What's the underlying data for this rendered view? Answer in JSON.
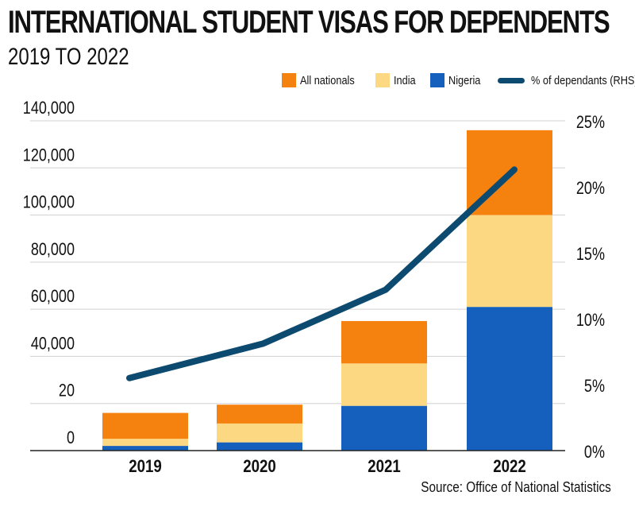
{
  "title": "INTERNATIONAL STUDENT VISAS FOR DEPENDENTS",
  "subtitle": "2019 TO 2022",
  "source": "Source: Office of National Statistics",
  "colors": {
    "all_nationals": "#f5820f",
    "india": "#fcd882",
    "nigeria": "#1560bd",
    "line": "#0d4a70"
  },
  "chart_data": {
    "type": "bar",
    "stacked": true,
    "categories": [
      "2019",
      "2020",
      "2021",
      "2022"
    ],
    "series": [
      {
        "name": "Nigeria",
        "values": [
          2000,
          3500,
          19000,
          61000
        ]
      },
      {
        "name": "India",
        "values": [
          3000,
          8000,
          18000,
          39000
        ]
      },
      {
        "name": "All nationals",
        "values": [
          11000,
          8000,
          18000,
          36000
        ]
      }
    ],
    "line_series": {
      "name": "% of dependants (RHS)",
      "values": [
        5.5,
        8.1,
        12.2,
        21.3
      ]
    },
    "y_left": {
      "ticks": [
        "0",
        "20",
        "40,000",
        "60,000",
        "80,000",
        "100,000",
        "120,000",
        "140,000"
      ],
      "range": [
        0,
        140000
      ]
    },
    "y_right": {
      "ticks": [
        "0%",
        "5%",
        "10%",
        "15%",
        "20%",
        "25%"
      ],
      "range": [
        0,
        25
      ]
    },
    "legend": [
      "All nationals",
      "India",
      "Nigeria",
      "% of dependants (RHS)"
    ],
    "legend_position": "top-right",
    "grid": "horizontal"
  }
}
